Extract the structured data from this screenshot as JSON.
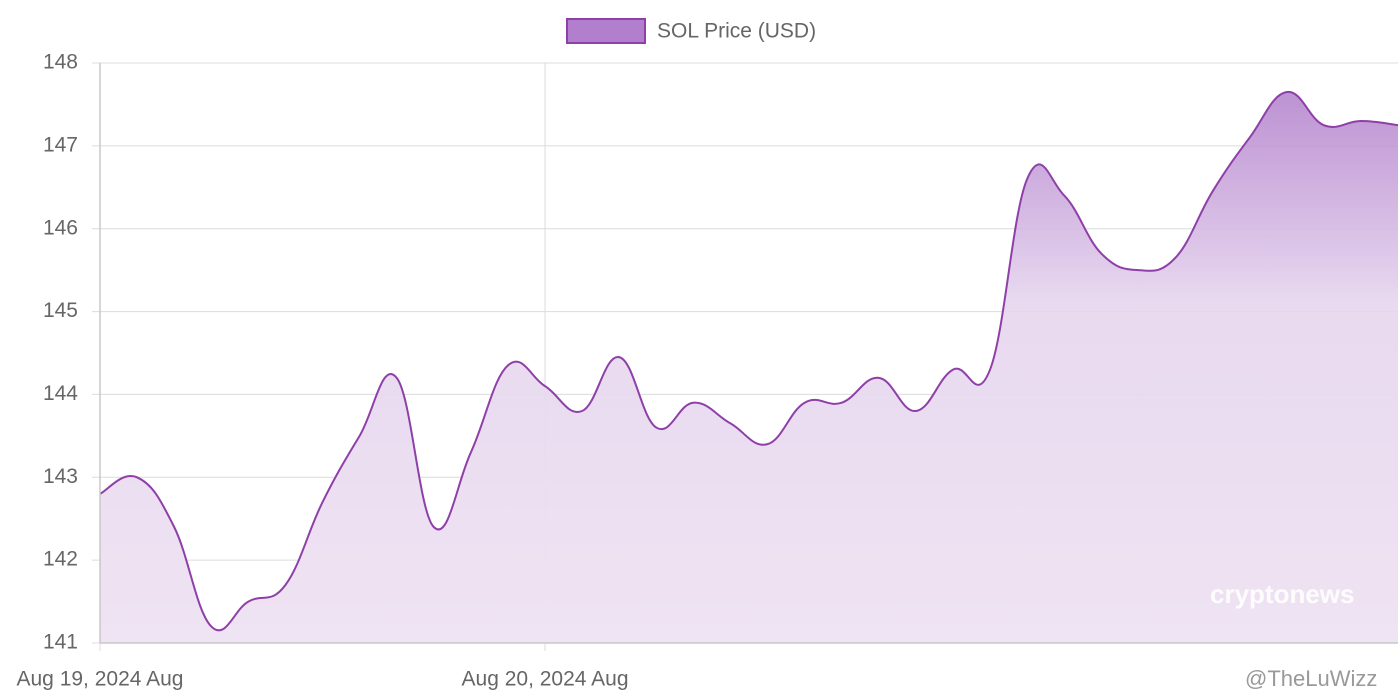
{
  "chart_data": {
    "type": "area",
    "legend": "top",
    "grid": true,
    "series": [
      {
        "name": "SOL Price (USD)",
        "color": "#8e3fa8",
        "fill": "#b17fcb",
        "values": [
          142.8,
          143.0,
          142.4,
          141.2,
          141.5,
          141.7,
          142.7,
          143.5,
          144.2,
          142.4,
          143.3,
          144.35,
          144.1,
          143.8,
          144.45,
          143.6,
          143.9,
          143.65,
          143.4,
          143.9,
          143.9,
          144.2,
          143.8,
          144.3,
          144.3,
          146.6,
          146.4,
          145.7,
          145.5,
          145.65,
          146.45,
          147.1,
          147.65,
          147.25,
          147.3,
          147.25
        ]
      }
    ],
    "categories": [
      "Aug 19, 2024 Aug",
      null,
      null,
      null,
      null,
      null,
      null,
      null,
      null,
      null,
      null,
      null,
      "Aug 20, 2024 Aug",
      null,
      null,
      null,
      null,
      null,
      null,
      null,
      null,
      null,
      null,
      null,
      null,
      null,
      null,
      null,
      null,
      null,
      null,
      null,
      null,
      null,
      null,
      null
    ],
    "ylim": [
      141,
      148
    ],
    "yticks": [
      141,
      142,
      143,
      144,
      145,
      146,
      147,
      148
    ],
    "annotations": [
      "cryptonews",
      "@TheLuWizz"
    ]
  }
}
